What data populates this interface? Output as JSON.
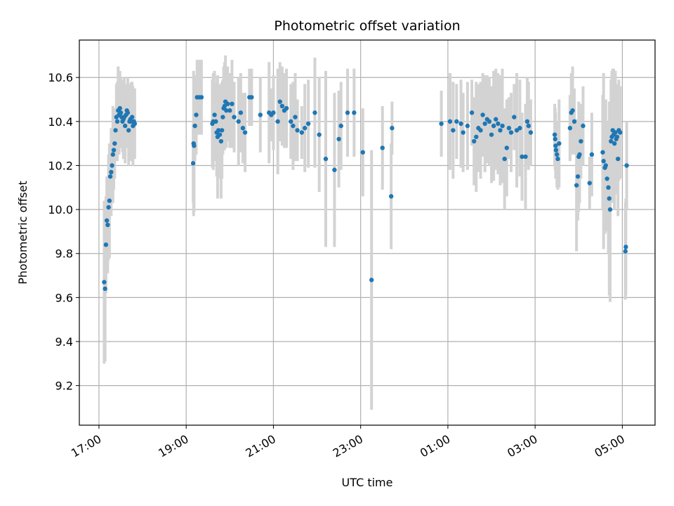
{
  "chart_data": {
    "type": "scatter",
    "title": "Photometric offset variation",
    "xlabel": "UTC time",
    "ylabel": "Photometric offset",
    "x_unit": "hours (UTC clock time)",
    "xlim": [
      16.55,
      29.75
    ],
    "ylim": [
      9.02,
      10.77
    ],
    "grid": true,
    "x_ticks": [
      {
        "value": 17,
        "label": "17:00"
      },
      {
        "value": 19,
        "label": "19:00"
      },
      {
        "value": 21,
        "label": "21:00"
      },
      {
        "value": 23,
        "label": "23:00"
      },
      {
        "value": 25,
        "label": "01:00"
      },
      {
        "value": 27,
        "label": "03:00"
      },
      {
        "value": 29,
        "label": "05:00"
      }
    ],
    "y_ticks": [
      {
        "value": 9.2,
        "label": "9.2"
      },
      {
        "value": 9.4,
        "label": "9.4"
      },
      {
        "value": 9.6,
        "label": "9.6"
      },
      {
        "value": 9.8,
        "label": "9.8"
      },
      {
        "value": 10.0,
        "label": "10.0"
      },
      {
        "value": 10.2,
        "label": "10.2"
      },
      {
        "value": 10.4,
        "label": "10.4"
      },
      {
        "value": 10.6,
        "label": "10.6"
      }
    ],
    "colors": {
      "points": "#1f77b4",
      "error_bars": "#d3d3d3",
      "grid": "#b0b0b0"
    },
    "series": [
      {
        "x": [
          17.12,
          17.14,
          17.16,
          17.18,
          17.2,
          17.22,
          17.24,
          17.26,
          17.28,
          17.3,
          17.32,
          17.34,
          17.36,
          17.38,
          17.4,
          17.42,
          17.44,
          17.46,
          17.48,
          17.5,
          17.52,
          17.54,
          17.56,
          17.58,
          17.6,
          17.62,
          17.64,
          17.66,
          17.68,
          17.7,
          17.72,
          17.74,
          17.76,
          17.78,
          17.8,
          17.82,
          19.16,
          19.17,
          19.18,
          19.2,
          19.23,
          19.25,
          19.3,
          19.35,
          19.6,
          19.62,
          19.65,
          19.68,
          19.7,
          19.72,
          19.74,
          19.77,
          19.8,
          19.82,
          19.84,
          19.86,
          19.88,
          19.9,
          19.92,
          19.95,
          20.0,
          20.05,
          20.1,
          20.2,
          20.25,
          20.3,
          20.35,
          20.45,
          20.5,
          20.7,
          20.9,
          20.95,
          21.0,
          21.1,
          21.15,
          21.2,
          21.25,
          21.3,
          21.4,
          21.45,
          21.5,
          21.55,
          21.65,
          21.72,
          21.8,
          21.95,
          22.05,
          22.2,
          22.4,
          22.5,
          22.55,
          22.7,
          22.85,
          23.05,
          23.25,
          23.5,
          23.7,
          23.72,
          24.85,
          25.05,
          25.12,
          25.2,
          25.3,
          25.35,
          25.45,
          25.55,
          25.6,
          25.65,
          25.7,
          25.75,
          25.8,
          25.85,
          25.9,
          25.95,
          26.0,
          26.05,
          26.1,
          26.15,
          26.2,
          26.25,
          26.3,
          26.35,
          26.4,
          26.45,
          26.52,
          26.58,
          26.65,
          26.7,
          26.78,
          26.82,
          26.85,
          26.9,
          27.45,
          27.46,
          27.47,
          27.48,
          27.5,
          27.52,
          27.55,
          27.8,
          27.83,
          27.86,
          27.9,
          27.95,
          27.98,
          28.0,
          28.02,
          28.05,
          28.1,
          28.25,
          28.3,
          28.55,
          28.57,
          28.6,
          28.62,
          28.65,
          28.68,
          28.7,
          28.72,
          28.74,
          28.76,
          28.78,
          28.8,
          28.82,
          28.84,
          28.86,
          28.88,
          28.9,
          28.92,
          28.95,
          29.07,
          29.08,
          29.1
        ],
        "y": [
          9.67,
          9.64,
          9.84,
          9.95,
          9.93,
          10.01,
          10.04,
          10.15,
          10.17,
          10.2,
          10.25,
          10.27,
          10.3,
          10.36,
          10.42,
          10.4,
          10.45,
          10.43,
          10.46,
          10.44,
          10.42,
          10.4,
          10.41,
          10.42,
          10.38,
          10.43,
          10.45,
          10.44,
          10.36,
          10.4,
          10.41,
          10.4,
          10.42,
          10.38,
          10.4,
          10.39,
          10.21,
          10.3,
          10.29,
          10.38,
          10.43,
          10.51,
          10.51,
          10.51,
          10.39,
          10.4,
          10.43,
          10.4,
          10.35,
          10.33,
          10.36,
          10.34,
          10.31,
          10.36,
          10.42,
          10.46,
          10.47,
          10.49,
          10.45,
          10.48,
          10.45,
          10.48,
          10.42,
          10.4,
          10.44,
          10.37,
          10.35,
          10.51,
          10.51,
          10.43,
          10.44,
          10.43,
          10.44,
          10.4,
          10.49,
          10.47,
          10.45,
          10.46,
          10.4,
          10.38,
          10.42,
          10.36,
          10.35,
          10.37,
          10.39,
          10.44,
          10.34,
          10.23,
          10.18,
          10.32,
          10.38,
          10.44,
          10.44,
          10.26,
          9.68,
          10.28,
          10.06,
          10.37,
          10.39,
          10.4,
          10.36,
          10.4,
          10.39,
          10.35,
          10.38,
          10.44,
          10.31,
          10.33,
          10.37,
          10.36,
          10.43,
          10.39,
          10.41,
          10.4,
          10.34,
          10.38,
          10.41,
          10.39,
          10.36,
          10.38,
          10.23,
          10.28,
          10.37,
          10.35,
          10.42,
          10.36,
          10.37,
          10.24,
          10.24,
          10.4,
          10.38,
          10.35,
          10.34,
          10.32,
          10.29,
          10.27,
          10.25,
          10.23,
          10.3,
          10.37,
          10.44,
          10.45,
          10.4,
          10.11,
          10.15,
          10.24,
          10.25,
          10.31,
          10.38,
          10.12,
          10.25,
          10.26,
          10.22,
          10.19,
          10.2,
          10.14,
          10.1,
          10.05,
          10.0,
          10.31,
          10.33,
          10.36,
          10.34,
          10.3,
          10.35,
          10.32,
          10.33,
          10.23,
          10.36,
          10.35,
          9.81,
          9.83,
          10.2
        ],
        "err": [
          0.37,
          0.33,
          0.22,
          0.2,
          0.22,
          0.24,
          0.26,
          0.1,
          0.2,
          0.12,
          0.22,
          0.18,
          0.16,
          0.1,
          0.15,
          0.18,
          0.2,
          0.18,
          0.17,
          0.16,
          0.13,
          0.14,
          0.18,
          0.18,
          0.17,
          0.14,
          0.12,
          0.16,
          0.16,
          0.15,
          0.16,
          0.18,
          0.16,
          0.18,
          0.14,
          0.16,
          0.18,
          0.33,
          0.3,
          0.16,
          0.18,
          0.17,
          0.17,
          0.17,
          0.2,
          0.22,
          0.2,
          0.18,
          0.2,
          0.28,
          0.21,
          0.2,
          0.26,
          0.22,
          0.17,
          0.19,
          0.2,
          0.21,
          0.17,
          0.17,
          0.17,
          0.2,
          0.16,
          0.2,
          0.18,
          0.16,
          0.18,
          0.13,
          0.13,
          0.17,
          0.23,
          0.12,
          0.17,
          0.24,
          0.18,
          0.18,
          0.17,
          0.18,
          0.17,
          0.2,
          0.2,
          0.14,
          0.12,
          0.2,
          0.2,
          0.25,
          0.26,
          0.4,
          0.35,
          0.22,
          0.2,
          0.2,
          0.2,
          0.2,
          0.59,
          0.19,
          0.24,
          0.12,
          0.15,
          0.22,
          0.22,
          0.17,
          0.2,
          0.18,
          0.2,
          0.15,
          0.2,
          0.25,
          0.2,
          0.22,
          0.19,
          0.22,
          0.2,
          0.2,
          0.22,
          0.25,
          0.23,
          0.23,
          0.25,
          0.26,
          0.23,
          0.22,
          0.14,
          0.18,
          0.15,
          0.26,
          0.22,
          0.2,
          0.24,
          0.2,
          0.2,
          0.15,
          0.14,
          0.14,
          0.15,
          0.11,
          0.15,
          0.14,
          0.2,
          0.15,
          0.18,
          0.2,
          0.15,
          0.3,
          0.2,
          0.25,
          0.22,
          0.17,
          0.18,
          0.12,
          0.19,
          0.26,
          0.4,
          0.3,
          0.3,
          0.24,
          0.3,
          0.44,
          0.42,
          0.28,
          0.3,
          0.28,
          0.3,
          0.3,
          0.28,
          0.25,
          0.2,
          0.26,
          0.23,
          0.21,
          0.22,
          0.22,
          0.2
        ]
      }
    ]
  }
}
